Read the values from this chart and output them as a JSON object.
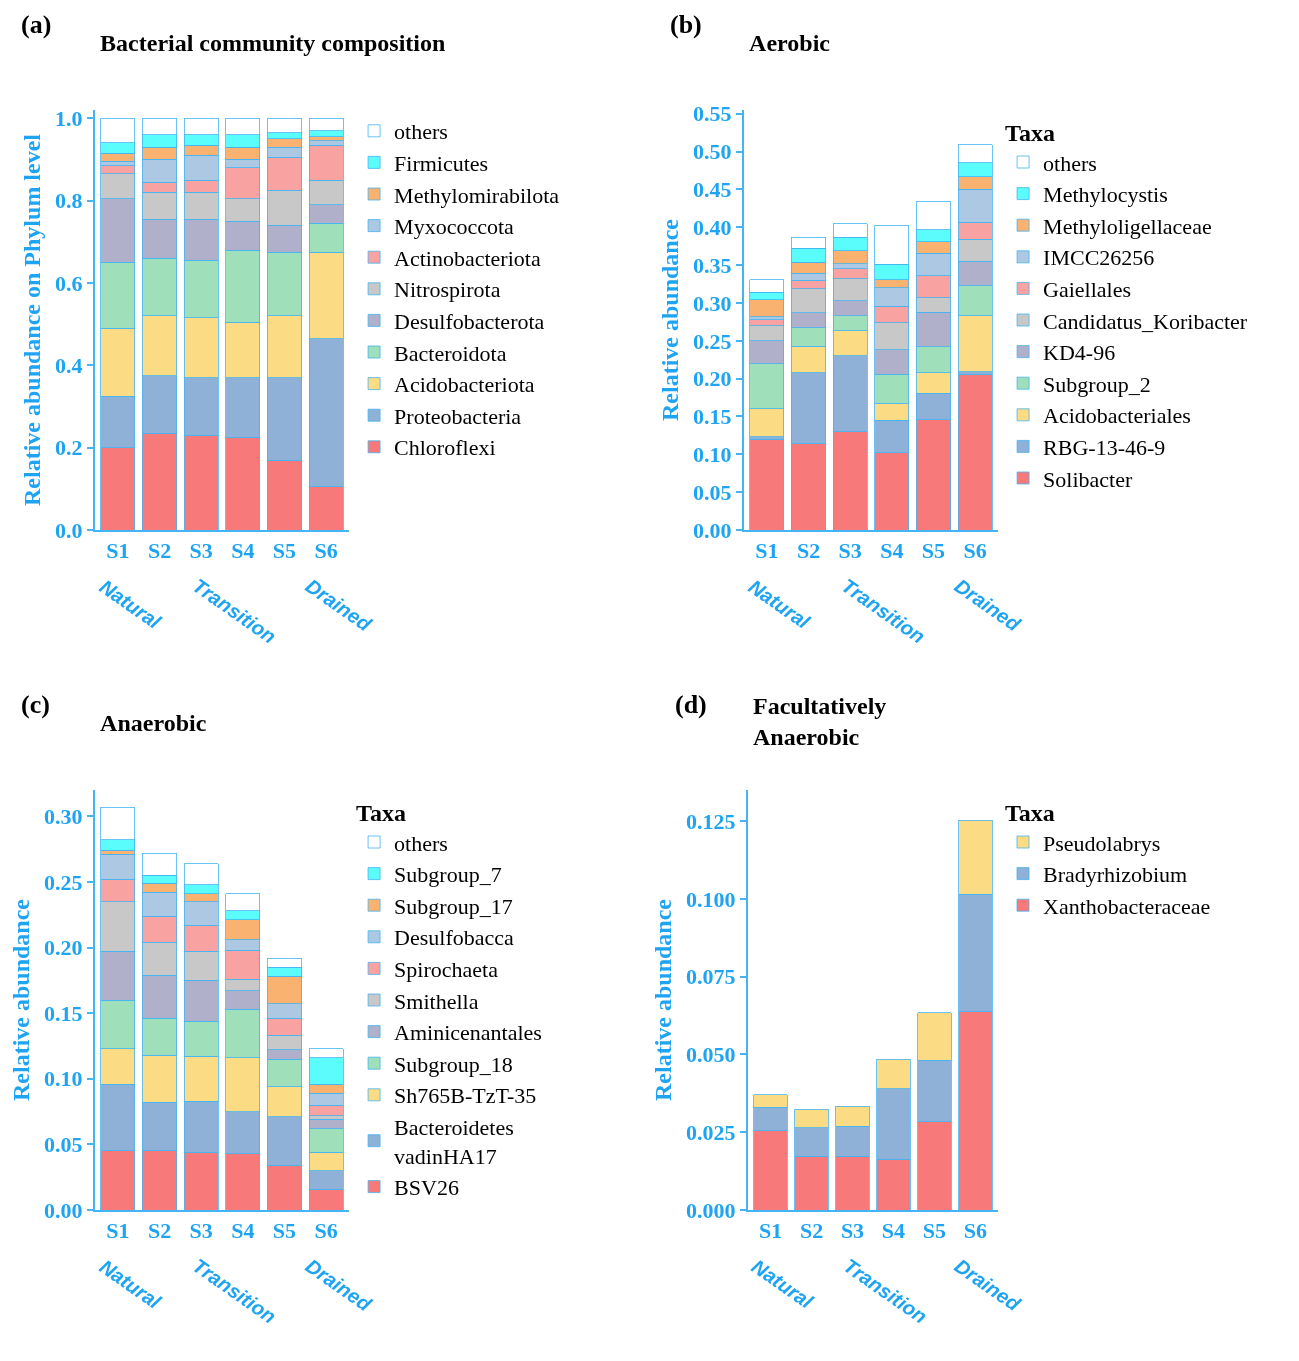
{
  "chart_data": [
    {
      "type": "bar",
      "stacked": true,
      "title": "Bacterial community composition",
      "ylabel": "Relative abundance on Phylum level",
      "categories": [
        "S1",
        "S2",
        "S3",
        "S4",
        "S5",
        "S6"
      ],
      "ylim": [
        0,
        1.02
      ],
      "yticks": [
        {
          "value": 0,
          "label": "0.0"
        },
        0.2,
        0.4,
        0.6,
        0.8,
        {
          "value": 1,
          "label": "1.0"
        }
      ],
      "grid": false,
      "legend": "right",
      "annotations": [
        "(a)",
        "Natural",
        "Transition",
        "Drained"
      ],
      "series": [
        {
          "name": "Chloroflexi",
          "color": "#f8797a",
          "values": [
            0.2,
            0.235,
            0.23,
            0.225,
            0.17,
            0.105
          ]
        },
        {
          "name": "Proteobacteria",
          "color": "#8fb1d8",
          "values": [
            0.125,
            0.14,
            0.14,
            0.145,
            0.2,
            0.36
          ]
        },
        {
          "name": "Acidobacteriota",
          "color": "#fbdc84",
          "values": [
            0.165,
            0.145,
            0.145,
            0.135,
            0.15,
            0.21
          ]
        },
        {
          "name": "Bacteroidota",
          "color": "#9fdfb9",
          "values": [
            0.16,
            0.14,
            0.14,
            0.175,
            0.155,
            0.07
          ]
        },
        {
          "name": "Desulfobacterota",
          "color": "#b0b0cb",
          "values": [
            0.155,
            0.095,
            0.1,
            0.07,
            0.065,
            0.045
          ]
        },
        {
          "name": "Nitrospirota",
          "color": "#c8c8c8",
          "values": [
            0.06,
            0.065,
            0.065,
            0.055,
            0.085,
            0.06
          ]
        },
        {
          "name": "Actinobacteriota",
          "color": "#f9a2a2",
          "values": [
            0.02,
            0.025,
            0.03,
            0.075,
            0.08,
            0.085
          ]
        },
        {
          "name": "Myxococcota",
          "color": "#adc8e3",
          "values": [
            0.01,
            0.055,
            0.06,
            0.02,
            0.025,
            0.01
          ]
        },
        {
          "name": "Methylomirabilota",
          "color": "#f9b26f",
          "values": [
            0.02,
            0.03,
            0.025,
            0.03,
            0.02,
            0.01
          ]
        },
        {
          "name": "Firmicutes",
          "color": "#5afcfc",
          "values": [
            0.025,
            0.03,
            0.025,
            0.03,
            0.015,
            0.015
          ]
        },
        {
          "name": "others",
          "color": "#ffffff",
          "values": [
            0.06,
            0.04,
            0.04,
            0.04,
            0.035,
            0.03
          ]
        }
      ]
    },
    {
      "type": "bar",
      "stacked": true,
      "title": "Aerobic",
      "ylabel": "Relative abundance",
      "legend_title": "Taxa",
      "categories": [
        "S1",
        "S2",
        "S3",
        "S4",
        "S5",
        "S6"
      ],
      "ylim": [
        0,
        0.555
      ],
      "yticks": [
        {
          "value": 0,
          "label": "0.00"
        },
        0.05,
        {
          "value": 0.1,
          "label": "0.10"
        },
        0.15,
        {
          "value": 0.2,
          "label": "0.20"
        },
        0.25,
        {
          "value": 0.3,
          "label": "0.30"
        },
        0.35,
        {
          "value": 0.4,
          "label": "0.40"
        },
        0.45,
        {
          "value": 0.5,
          "label": "0.50"
        },
        0.55
      ],
      "grid": false,
      "legend": "right",
      "annotations": [
        "(b)",
        "Natural",
        "Transition",
        "Drained"
      ],
      "series": [
        {
          "name": "Solibacter",
          "color": "#f8797a",
          "values": [
            0.12,
            0.114,
            0.13,
            0.102,
            0.146,
            0.205
          ]
        },
        {
          "name": "RBG-13-46-9",
          "color": "#8fb1d8",
          "values": [
            0.003,
            0.094,
            0.1,
            0.043,
            0.035,
            0.004
          ]
        },
        {
          "name": "Acidobacteriales",
          "color": "#fbdc84",
          "values": [
            0.037,
            0.035,
            0.033,
            0.022,
            0.027,
            0.074
          ]
        },
        {
          "name": "Subgroup_2",
          "color": "#9fdfb9",
          "values": [
            0.06,
            0.024,
            0.02,
            0.039,
            0.034,
            0.04
          ]
        },
        {
          "name": "KD4-96",
          "color": "#b0b0cb",
          "values": [
            0.03,
            0.02,
            0.02,
            0.032,
            0.046,
            0.032
          ]
        },
        {
          "name": "Candidatus_Koribacter",
          "color": "#c8c8c8",
          "values": [
            0.02,
            0.032,
            0.029,
            0.036,
            0.019,
            0.029
          ]
        },
        {
          "name": "Gaiellales",
          "color": "#f9a2a2",
          "values": [
            0.008,
            0.011,
            0.013,
            0.022,
            0.029,
            0.023
          ]
        },
        {
          "name": "IMCC26256",
          "color": "#adc8e3",
          "values": [
            0.004,
            0.009,
            0.007,
            0.024,
            0.03,
            0.043
          ]
        },
        {
          "name": "Methyloligellaceae",
          "color": "#f9b26f",
          "values": [
            0.022,
            0.015,
            0.017,
            0.011,
            0.015,
            0.017
          ]
        },
        {
          "name": "Methylocystis",
          "color": "#5afcfc",
          "values": [
            0.01,
            0.018,
            0.018,
            0.02,
            0.016,
            0.018
          ]
        },
        {
          "name": "others",
          "color": "#ffffff",
          "values": [
            0.017,
            0.015,
            0.018,
            0.052,
            0.037,
            0.024
          ]
        }
      ]
    },
    {
      "type": "bar",
      "stacked": true,
      "title": "Anaerobic",
      "ylabel": "Relative abundance",
      "legend_title": "Taxa",
      "categories": [
        "S1",
        "S2",
        "S3",
        "S4",
        "S5",
        "S6"
      ],
      "ylim": [
        0,
        0.32
      ],
      "yticks": [
        {
          "value": 0,
          "label": "0.00"
        },
        0.05,
        {
          "value": 0.1,
          "label": "0.10"
        },
        0.15,
        {
          "value": 0.2,
          "label": "0.20"
        },
        0.25,
        {
          "value": 0.3,
          "label": "0.30"
        }
      ],
      "grid": false,
      "legend": "right",
      "annotations": [
        "(c)",
        "Natural",
        "Transition",
        "Drained"
      ],
      "series": [
        {
          "name": "BSV26",
          "color": "#f8797a",
          "values": [
            0.045,
            0.045,
            0.044,
            0.043,
            0.034,
            0.016
          ]
        },
        {
          "name": "Bacteroidetes vadinHA17",
          "color": "#8fb1d8",
          "values": [
            0.051,
            0.037,
            0.039,
            0.032,
            0.037,
            0.014
          ]
        },
        {
          "name": "Sh765B-TzT-35",
          "color": "#fbdc84",
          "values": [
            0.027,
            0.036,
            0.034,
            0.041,
            0.023,
            0.014
          ]
        },
        {
          "name": "Subgroup_18",
          "color": "#9fdfb9",
          "values": [
            0.037,
            0.028,
            0.027,
            0.037,
            0.021,
            0.018
          ]
        },
        {
          "name": "Aminicenantales",
          "color": "#b0b0cb",
          "values": [
            0.037,
            0.033,
            0.031,
            0.014,
            0.007,
            0.007
          ]
        },
        {
          "name": "Smithella",
          "color": "#c8c8c8",
          "values": [
            0.038,
            0.025,
            0.022,
            0.009,
            0.011,
            0.003
          ]
        },
        {
          "name": "Spirochaeta",
          "color": "#f9a2a2",
          "values": [
            0.017,
            0.02,
            0.02,
            0.022,
            0.013,
            0.008
          ]
        },
        {
          "name": "Desulfobacca",
          "color": "#adc8e3",
          "values": [
            0.019,
            0.018,
            0.018,
            0.008,
            0.011,
            0.009
          ]
        },
        {
          "name": "Subgroup_17",
          "color": "#f9b26f",
          "values": [
            0.003,
            0.007,
            0.006,
            0.015,
            0.021,
            0.007
          ]
        },
        {
          "name": "Subgroup_7",
          "color": "#5afcfc",
          "values": [
            0.008,
            0.006,
            0.007,
            0.007,
            0.007,
            0.02
          ]
        },
        {
          "name": "others",
          "color": "#ffffff",
          "values": [
            0.025,
            0.017,
            0.016,
            0.013,
            0.007,
            0.007
          ]
        }
      ]
    },
    {
      "type": "bar",
      "stacked": true,
      "title": "Facultatively\nAnaerobic",
      "ylabel": "Relative abundance",
      "legend_title": "Taxa",
      "categories": [
        "S1",
        "S2",
        "S3",
        "S4",
        "S5",
        "S6"
      ],
      "ylim": [
        0,
        0.135
      ],
      "yticks": [
        {
          "value": 0,
          "label": "0.000"
        },
        0.025,
        {
          "value": 0.05,
          "label": "0.050"
        },
        0.075,
        {
          "value": 0.1,
          "label": "0.100"
        },
        0.125
      ],
      "grid": false,
      "legend": "right",
      "annotations": [
        "(d)",
        "Natural",
        "Transition",
        "Drained"
      ],
      "series": [
        {
          "name": "Xanthobacteraceae",
          "color": "#f8797a",
          "values": [
            0.0255,
            0.0172,
            0.0172,
            0.0163,
            0.0284,
            0.0638
          ]
        },
        {
          "name": "Bradyrhizobium",
          "color": "#8fb1d8",
          "values": [
            0.0076,
            0.0093,
            0.0098,
            0.0227,
            0.0198,
            0.0377
          ]
        },
        {
          "name": "Pseudolabrys",
          "color": "#fbdc84",
          "values": [
            0.004,
            0.0059,
            0.0063,
            0.0095,
            0.0152,
            0.0237
          ]
        }
      ]
    }
  ]
}
